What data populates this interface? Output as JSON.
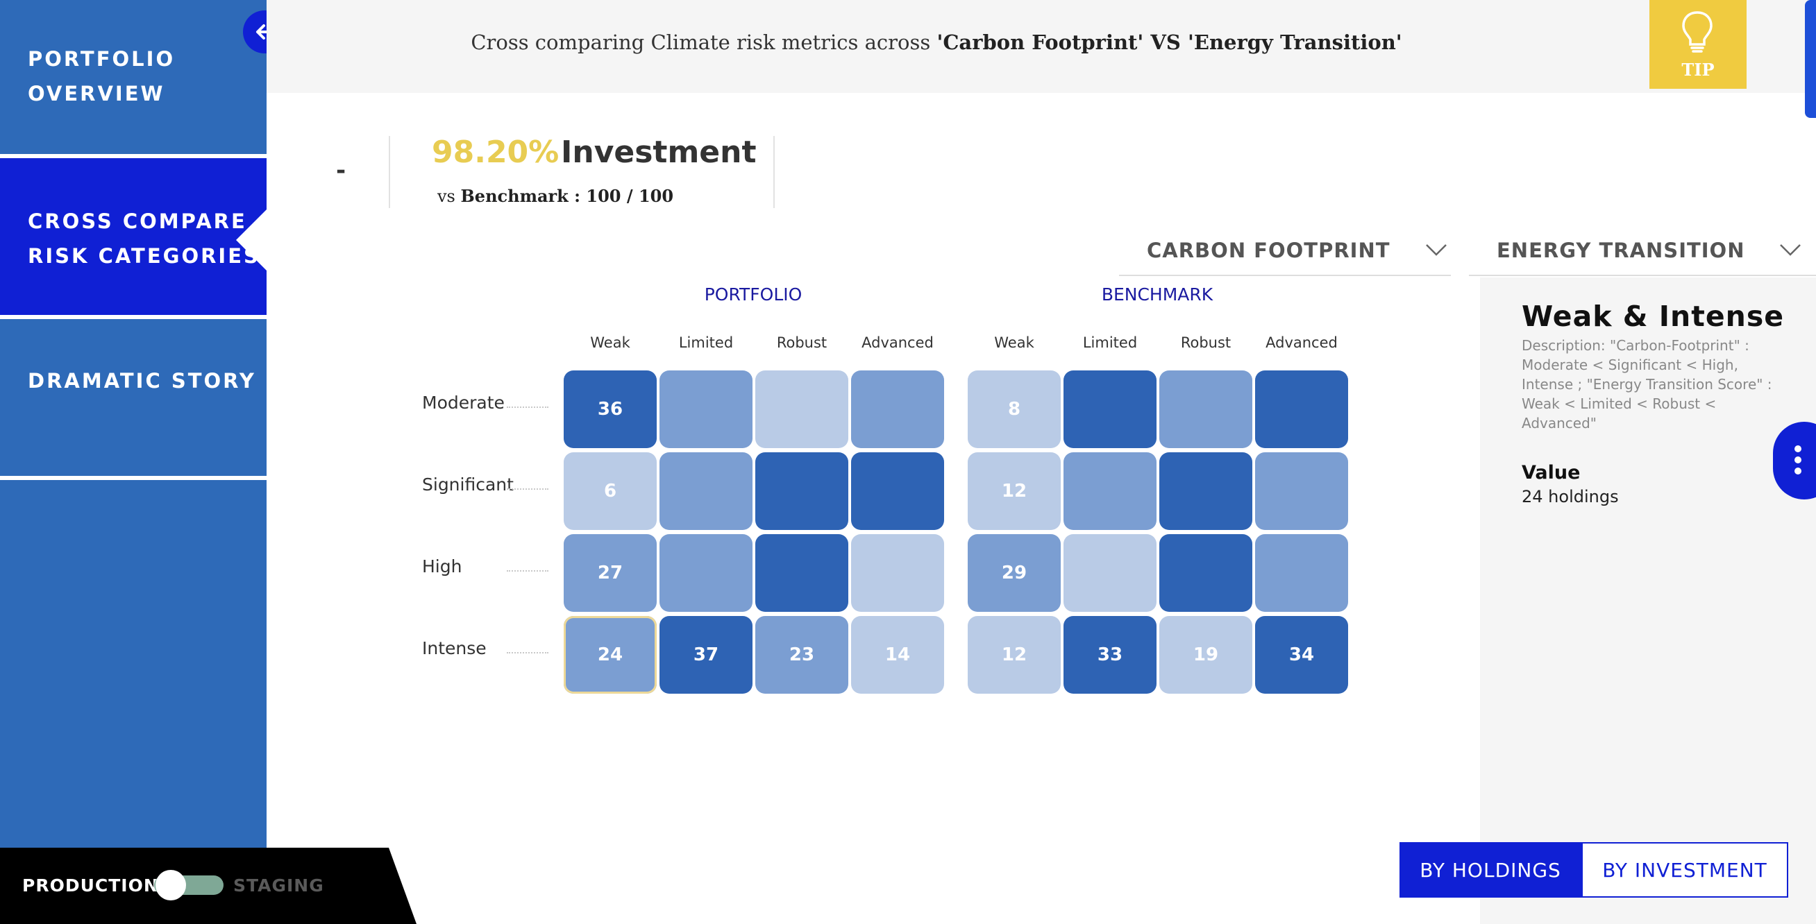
{
  "sidebar": {
    "items": [
      {
        "line1": "PORTFOLIO",
        "line2": "OVERVIEW"
      },
      {
        "line1": "CROSS COMPARE",
        "line2": "RISK CATEGORIES"
      },
      {
        "line1": "DRAMATIC STORY",
        "line2": ""
      }
    ],
    "active_index": 1
  },
  "environment": {
    "production_label": "PRODUCTION",
    "staging_label": "STAGING",
    "selected": "PRODUCTION"
  },
  "header": {
    "prefix": "Cross comparing Climate risk metrics across ",
    "metric_a": "'Carbon Footprint'",
    "vs": " VS ",
    "metric_b": "'Energy Transition'"
  },
  "tip": {
    "label": "TIP"
  },
  "metric": {
    "dash": "-",
    "percent": "98.20%",
    "label": "Investment",
    "bench_prefix": "vs ",
    "bench_label": "Benchmark : 100 / 100"
  },
  "dropdowns": {
    "first": "CARBON FOOTPRINT",
    "second": "ENERGY TRANSITION"
  },
  "matrix": {
    "portfolio_title": "PORTFOLIO",
    "benchmark_title": "BENCHMARK",
    "columns": [
      "Weak",
      "Limited",
      "Robust",
      "Advanced"
    ],
    "rows": [
      "Moderate",
      "Significant",
      "High",
      "Intense"
    ],
    "portfolio": [
      [
        {
          "v": "36",
          "s": "dark"
        },
        {
          "v": "",
          "s": "mid"
        },
        {
          "v": "",
          "s": "light"
        },
        {
          "v": "",
          "s": "mid"
        }
      ],
      [
        {
          "v": "6",
          "s": "light"
        },
        {
          "v": "",
          "s": "mid"
        },
        {
          "v": "",
          "s": "dark"
        },
        {
          "v": "",
          "s": "dark"
        }
      ],
      [
        {
          "v": "27",
          "s": "mid"
        },
        {
          "v": "",
          "s": "mid"
        },
        {
          "v": "",
          "s": "dark"
        },
        {
          "v": "",
          "s": "light"
        }
      ],
      [
        {
          "v": "24",
          "s": "mid"
        },
        {
          "v": "37",
          "s": "dark"
        },
        {
          "v": "23",
          "s": "mid"
        },
        {
          "v": "14",
          "s": "light"
        }
      ]
    ],
    "benchmark": [
      [
        {
          "v": "8",
          "s": "light"
        },
        {
          "v": "",
          "s": "dark"
        },
        {
          "v": "",
          "s": "mid"
        },
        {
          "v": "",
          "s": "dark"
        }
      ],
      [
        {
          "v": "12",
          "s": "light"
        },
        {
          "v": "",
          "s": "mid"
        },
        {
          "v": "",
          "s": "dark"
        },
        {
          "v": "",
          "s": "mid"
        }
      ],
      [
        {
          "v": "29",
          "s": "mid"
        },
        {
          "v": "",
          "s": "light"
        },
        {
          "v": "",
          "s": "dark"
        },
        {
          "v": "",
          "s": "mid"
        }
      ],
      [
        {
          "v": "12",
          "s": "light"
        },
        {
          "v": "33",
          "s": "dark"
        },
        {
          "v": "19",
          "s": "light"
        },
        {
          "v": "34",
          "s": "dark"
        }
      ]
    ],
    "selected": {
      "row": "Intense",
      "column": "Weak"
    }
  },
  "detail": {
    "title": "Weak & Intense",
    "description": "Description: \"Carbon-Footprint\" : Moderate < Significant < High, Intense ; \"Energy Transition Score\" : Weak < Limited < Robust < Advanced\"",
    "value_label": "Value",
    "value": "24 holdings"
  },
  "modes": {
    "holdings": "BY HOLDINGS",
    "investment": "BY INVESTMENT",
    "active": "BY HOLDINGS"
  },
  "colors": {
    "accent": "#1020d4",
    "sidebar": "#2e6ab8",
    "tip": "#f0cb40",
    "highlight": "#e8cc52",
    "cell_light": "#b9cbe6",
    "cell_mid": "#7b9ed2",
    "cell_dark": "#2e63b4"
  }
}
